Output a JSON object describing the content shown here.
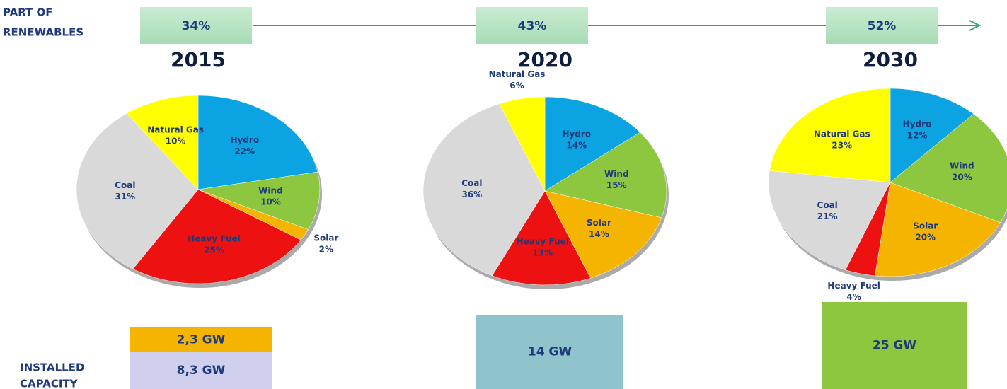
{
  "renewables": {
    "label_lines": [
      "PART OF",
      "RENEWABLES"
    ],
    "values": [
      34,
      43,
      52
    ],
    "value_labels": [
      "34%",
      "43%",
      "52%"
    ]
  },
  "capacity": {
    "label_lines": [
      "INSTALLED",
      "CAPACITY"
    ],
    "items": [
      [
        "2,3 GW",
        "8,3 GW"
      ],
      [
        "14 GW"
      ],
      [
        "25 GW"
      ]
    ]
  },
  "chart_data": [
    {
      "type": "pie",
      "title": "2015",
      "categories": [
        "Hydro",
        "Wind",
        "Solar",
        "Heavy Fuel",
        "Coal",
        "Natural Gas"
      ],
      "values": [
        22,
        10,
        2,
        25,
        31,
        10
      ],
      "value_labels": [
        "22%",
        "10%",
        "2%",
        "25%",
        "31%",
        "10%"
      ],
      "colors": [
        "#0ca3e3",
        "#8dc63f",
        "#f5b400",
        "#ee1111",
        "#d9d9d9",
        "#ffff00"
      ]
    },
    {
      "type": "pie",
      "title": "2020",
      "categories": [
        "Hydro",
        "Wind",
        "Solar",
        "Heavy Fuel",
        "Coal",
        "Natural Gas"
      ],
      "values": [
        14,
        15,
        14,
        13,
        36,
        6
      ],
      "value_labels": [
        "14%",
        "15%",
        "14%",
        "13%",
        "36%",
        "6%"
      ],
      "colors": [
        "#0ca3e3",
        "#8dc63f",
        "#f5b400",
        "#ee1111",
        "#d9d9d9",
        "#ffff00"
      ]
    },
    {
      "type": "pie",
      "title": "2030",
      "categories": [
        "Hydro",
        "Wind",
        "Solar",
        "Heavy Fuel",
        "Coal",
        "Natural Gas"
      ],
      "values": [
        12,
        20,
        20,
        4,
        21,
        23
      ],
      "value_labels": [
        "12%",
        "20%",
        "20%",
        "4%",
        "21%",
        "23%"
      ],
      "colors": [
        "#0ca3e3",
        "#8dc63f",
        "#f5b400",
        "#ee1111",
        "#d9d9d9",
        "#ffff00"
      ]
    }
  ]
}
